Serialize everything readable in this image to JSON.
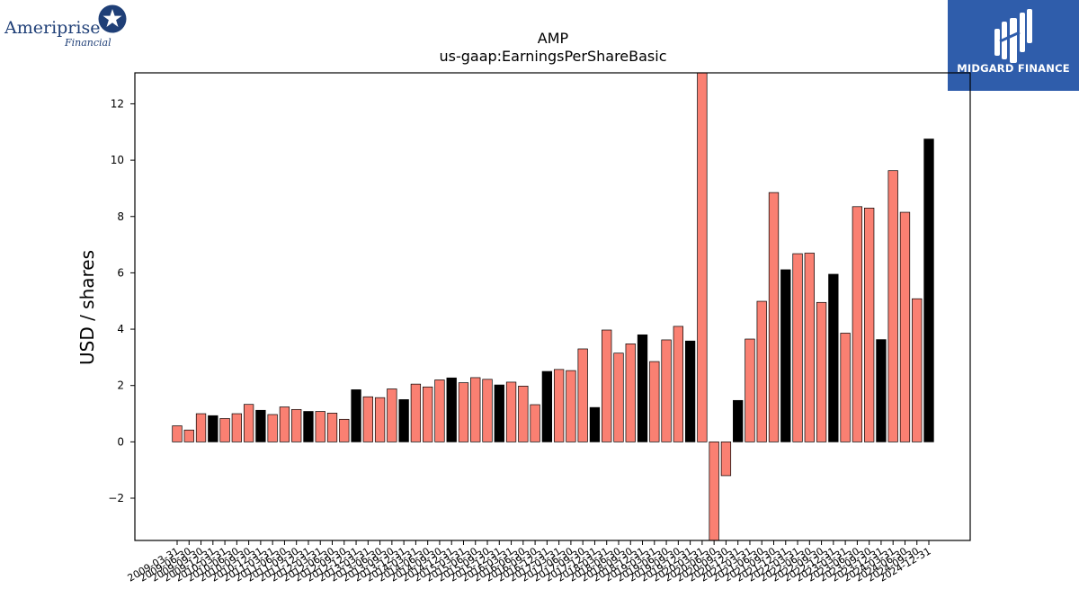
{
  "brand": {
    "left_logo_text": "Ameriprise",
    "left_logo_subtext": "Financial",
    "right_logo_text": "MIDGARD FINANCE",
    "brand_colors": {
      "ameriprise_navy": "#1f3f77",
      "midgard_blue": "#2f5dab"
    }
  },
  "chart_data": {
    "type": "bar",
    "title": "AMP",
    "subtitle": "us-gaap:EarningsPerShareBasic",
    "xlabel": "",
    "ylabel": "USD / shares",
    "ylim": [
      -3.5,
      13.1
    ],
    "yticks": [
      -2,
      0,
      2,
      4,
      6,
      8,
      10,
      12
    ],
    "grid": false,
    "colors": {
      "quarterly": "#fa8072",
      "annual": "#000000"
    },
    "categories": [
      "2009-03-31",
      "2009-06-30",
      "2009-09-30",
      "2009-12-31",
      "2010-03-31",
      "2010-06-30",
      "2010-09-30",
      "2010-12-31",
      "2011-03-31",
      "2011-06-30",
      "2011-09-30",
      "2011-12-31",
      "2012-03-31",
      "2012-06-30",
      "2012-09-30",
      "2012-12-31",
      "2013-03-31",
      "2013-06-30",
      "2013-09-30",
      "2013-12-31",
      "2014-03-31",
      "2014-06-30",
      "2014-09-30",
      "2014-12-31",
      "2015-03-31",
      "2015-06-30",
      "2015-09-30",
      "2015-12-31",
      "2016-03-31",
      "2016-06-30",
      "2016-09-30",
      "2016-12-31",
      "2017-03-31",
      "2017-06-30",
      "2017-09-30",
      "2017-12-31",
      "2018-03-31",
      "2018-06-30",
      "2018-09-30",
      "2018-12-31",
      "2019-03-31",
      "2019-06-30",
      "2019-09-30",
      "2019-12-31",
      "2020-03-31",
      "2020-06-30",
      "2020-09-30",
      "2020-12-31",
      "2021-03-31",
      "2021-06-30",
      "2021-09-30",
      "2021-12-31",
      "2022-03-31",
      "2022-06-30",
      "2022-09-30",
      "2022-12-31",
      "2023-03-31",
      "2023-06-30",
      "2023-09-30",
      "2023-12-31",
      "2024-03-31",
      "2024-06-30",
      "2024-09-30",
      "2024-12-31"
    ],
    "values": [
      0.57,
      0.42,
      1.0,
      0.93,
      0.83,
      1.0,
      1.33,
      1.12,
      0.97,
      1.24,
      1.15,
      1.08,
      1.08,
      1.02,
      0.8,
      1.85,
      1.6,
      1.57,
      1.88,
      1.5,
      2.05,
      1.95,
      2.2,
      2.27,
      2.1,
      2.28,
      2.22,
      2.02,
      2.12,
      1.98,
      1.32,
      2.5,
      2.57,
      2.53,
      3.3,
      1.22,
      3.97,
      3.15,
      3.48,
      3.8,
      2.85,
      3.62,
      4.1,
      3.58,
      13.1,
      -3.5,
      -1.2,
      1.47,
      3.65,
      4.99,
      8.85,
      6.11,
      6.68,
      6.7,
      4.95,
      5.95,
      3.86,
      8.35,
      8.3,
      3.63,
      9.63,
      8.15,
      5.08,
      10.75
    ],
    "annual_flags": [
      0,
      0,
      0,
      1,
      0,
      0,
      0,
      1,
      0,
      0,
      0,
      1,
      0,
      0,
      0,
      1,
      0,
      0,
      0,
      1,
      0,
      0,
      0,
      1,
      0,
      0,
      0,
      1,
      0,
      0,
      0,
      1,
      0,
      0,
      0,
      1,
      0,
      0,
      0,
      1,
      0,
      0,
      0,
      1,
      0,
      0,
      0,
      1,
      0,
      0,
      0,
      1,
      0,
      0,
      0,
      1,
      0,
      0,
      0,
      1,
      0,
      0,
      0,
      1
    ]
  }
}
